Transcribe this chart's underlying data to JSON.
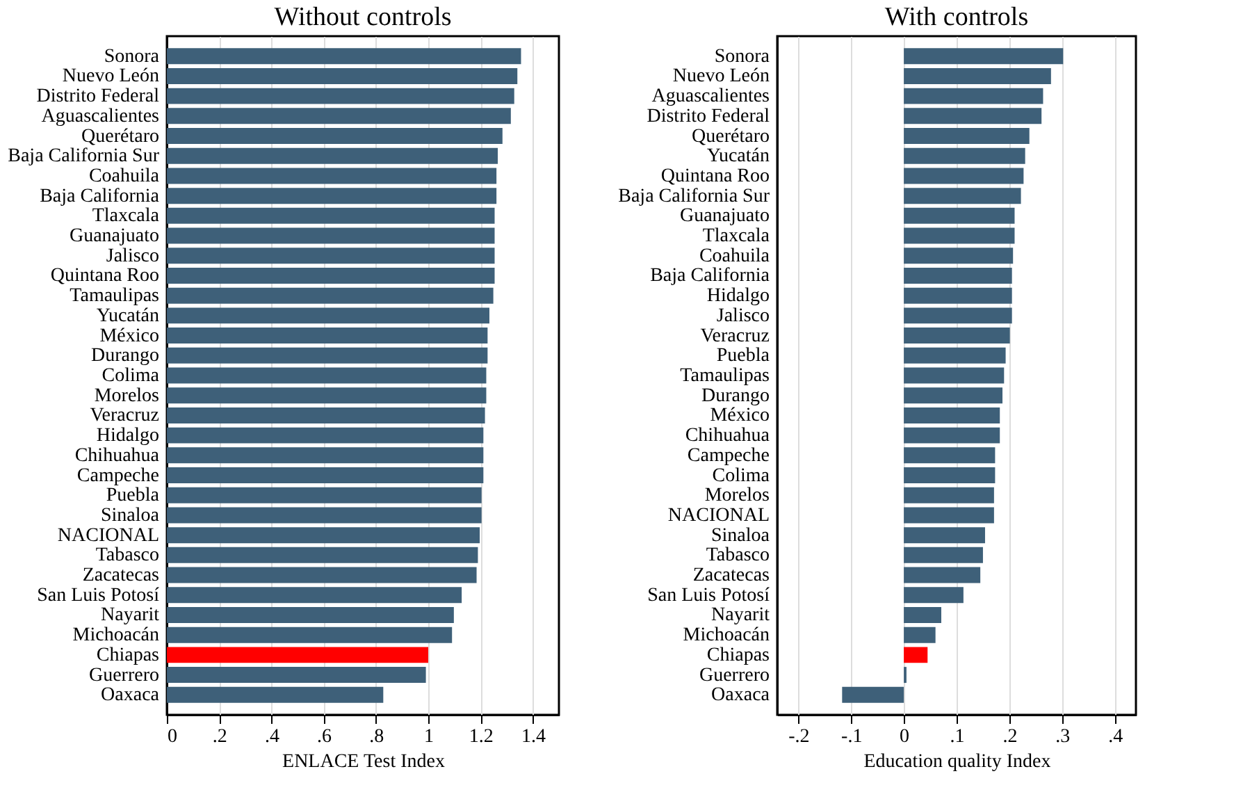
{
  "chart_data": [
    {
      "type": "bar",
      "orientation": "horizontal",
      "title": "Without controls",
      "xlabel": "ENLACE Test Index",
      "grid": "x",
      "categories": [
        "Sonora",
        "Nuevo León",
        "Distrito Federal",
        "Aguascalientes",
        "Querétaro",
        "Baja California Sur",
        "Coahuila",
        "Baja California",
        "Tlaxcala",
        "Guanajuato",
        "Jalisco",
        "Quintana Roo",
        "Tamaulipas",
        "Yucatán",
        "México",
        "Durango",
        "Colima",
        "Morelos",
        "Veracruz",
        "Hidalgo",
        "Chihuahua",
        "Campeche",
        "Puebla",
        "Sinaloa",
        "NACIONAL",
        "Tabasco",
        "Zacatecas",
        "San Luis Potosí",
        "Nayarit",
        "Michoacán",
        "Chiapas",
        "Guerrero",
        "Oaxaca"
      ],
      "values": [
        1.355,
        1.341,
        1.329,
        1.316,
        1.284,
        1.266,
        1.261,
        1.261,
        1.254,
        1.254,
        1.254,
        1.254,
        1.249,
        1.234,
        1.227,
        1.227,
        1.222,
        1.222,
        1.217,
        1.211,
        1.211,
        1.211,
        1.204,
        1.204,
        1.197,
        1.19,
        1.185,
        1.128,
        1.098,
        1.091,
        1.0,
        0.991,
        0.828
      ],
      "colors": [
        "#3e6079",
        "#3e6079",
        "#3e6079",
        "#3e6079",
        "#3e6079",
        "#3e6079",
        "#3e6079",
        "#3e6079",
        "#3e6079",
        "#3e6079",
        "#3e6079",
        "#3e6079",
        "#3e6079",
        "#3e6079",
        "#3e6079",
        "#3e6079",
        "#3e6079",
        "#3e6079",
        "#3e6079",
        "#3e6079",
        "#3e6079",
        "#3e6079",
        "#3e6079",
        "#3e6079",
        "#3e6079",
        "#3e6079",
        "#3e6079",
        "#3e6079",
        "#3e6079",
        "#3e6079",
        "#ff0000",
        "#3e6079",
        "#3e6079"
      ],
      "xlim": [
        0,
        1.5
      ],
      "xticks": [
        0,
        {
          "value": 0.2,
          "label": ".2"
        },
        {
          "value": 0.4,
          "label": ".4"
        },
        {
          "value": 0.6,
          "label": ".6"
        },
        {
          "value": 0.8,
          "label": ".8"
        },
        1,
        1.2,
        1.4
      ]
    },
    {
      "type": "bar",
      "orientation": "horizontal",
      "title": "With controls",
      "xlabel": "Education quality Index",
      "grid": "x",
      "categories": [
        "Sonora",
        "Nuevo León",
        "Aguascalientes",
        "Distrito Federal",
        "Querétaro",
        "Yucatán",
        "Quintana Roo",
        "Baja California Sur",
        "Guanajuato",
        "Tlaxcala",
        "Coahuila",
        "Baja California",
        "Hidalgo",
        "Jalisco",
        "Veracruz",
        "Puebla",
        "Tamaulipas",
        "Durango",
        "México",
        "Chihuahua",
        "Campeche",
        "Colima",
        "Morelos",
        "NACIONAL",
        "Sinaloa",
        "Tabasco",
        "Zacatecas",
        "San Luis Potosí",
        "Nayarit",
        "Michoacán",
        "Chiapas",
        "Guerrero",
        "Oaxaca"
      ],
      "values": [
        0.302,
        0.279,
        0.264,
        0.261,
        0.238,
        0.23,
        0.227,
        0.222,
        0.21,
        0.21,
        0.207,
        0.205,
        0.205,
        0.205,
        0.201,
        0.193,
        0.19,
        0.187,
        0.182,
        0.182,
        0.173,
        0.173,
        0.171,
        0.171,
        0.154,
        0.15,
        0.145,
        0.113,
        0.071,
        0.06,
        0.045,
        0.005,
        -0.117
      ],
      "colors": [
        "#3e6079",
        "#3e6079",
        "#3e6079",
        "#3e6079",
        "#3e6079",
        "#3e6079",
        "#3e6079",
        "#3e6079",
        "#3e6079",
        "#3e6079",
        "#3e6079",
        "#3e6079",
        "#3e6079",
        "#3e6079",
        "#3e6079",
        "#3e6079",
        "#3e6079",
        "#3e6079",
        "#3e6079",
        "#3e6079",
        "#3e6079",
        "#3e6079",
        "#3e6079",
        "#3e6079",
        "#3e6079",
        "#3e6079",
        "#3e6079",
        "#3e6079",
        "#3e6079",
        "#3e6079",
        "#ff0000",
        "#3e6079",
        "#3e6079"
      ],
      "xlim": [
        -0.24,
        0.44
      ],
      "xticks": [
        {
          "value": -0.2,
          "label": "-.2"
        },
        {
          "value": -0.1,
          "label": "-.1"
        },
        0,
        {
          "value": 0.1,
          "label": ".1"
        },
        {
          "value": 0.2,
          "label": ".2"
        },
        {
          "value": 0.3,
          "label": ".3"
        },
        {
          "value": 0.4,
          "label": ".4"
        }
      ]
    }
  ]
}
